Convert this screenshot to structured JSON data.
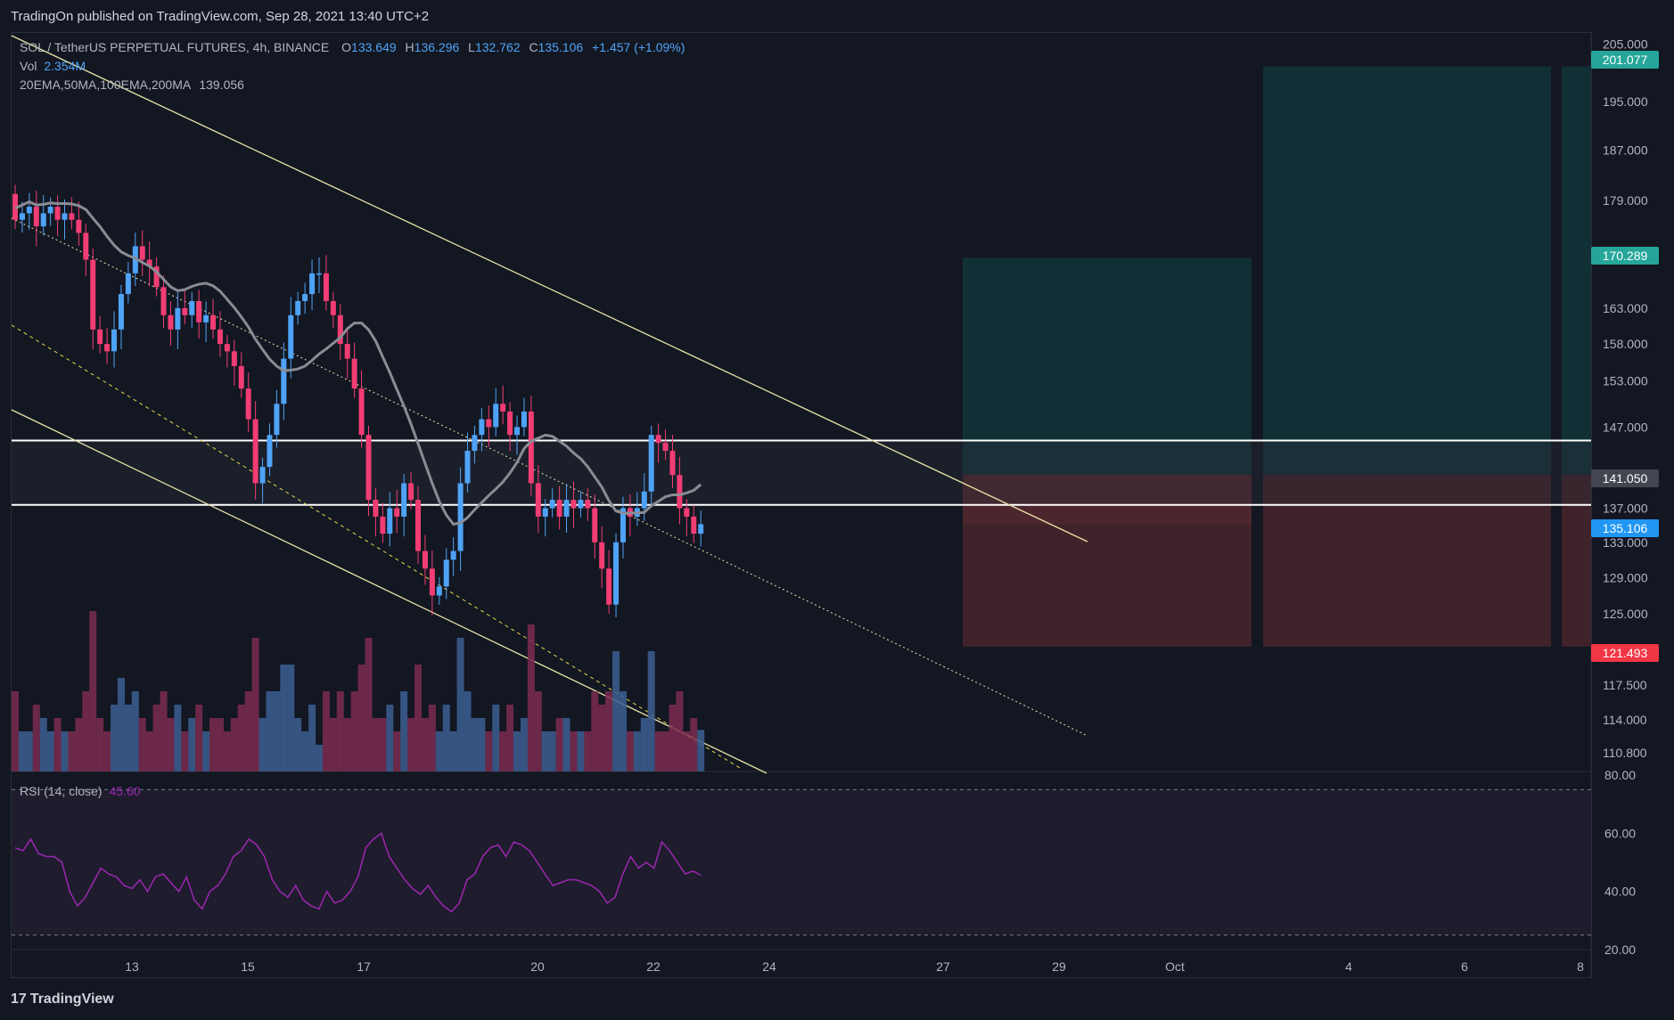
{
  "header": {
    "published_text": "TradingOn published on TradingView.com, Sep 28, 2021 13:40 UTC+2"
  },
  "legend": {
    "symbol_line": "SOL / TetherUS PERPETUAL FUTURES, 4h, BINANCE",
    "ohlc": {
      "O_label": "O",
      "O": "133.649",
      "H_label": "H",
      "H": "136.296",
      "L_label": "L",
      "L": "132.762",
      "C_label": "C",
      "C": "135.106",
      "change": "+1.457 (+1.09%)"
    },
    "vol_label": "Vol",
    "vol_value": "2.354M",
    "ma_label": "20EMA,50MA,100EMA,200MA",
    "ma_value": "139.056",
    "rsi_label": "RSI (14, close)",
    "rsi_value": "45.60"
  },
  "price_axis": {
    "ticks": [
      "205.000",
      "195.000",
      "187.000",
      "179.000",
      "163.000",
      "158.000",
      "153.000",
      "147.000",
      "137.000",
      "133.000",
      "129.000",
      "125.000",
      "117.500",
      "114.000",
      "110.800"
    ],
    "tags": [
      {
        "label": "201.077",
        "color": "#26a69a"
      },
      {
        "label": "170.289",
        "color": "#26a69a"
      },
      {
        "label": "141.050",
        "color": "#434651"
      },
      {
        "label": "135.106",
        "color": "#2196f3"
      },
      {
        "label": "121.493",
        "color": "#f23645"
      }
    ]
  },
  "rsi_axis": {
    "ticks": [
      "80.00",
      "60.00",
      "40.00",
      "20.00"
    ]
  },
  "time_axis": {
    "ticks": [
      "13",
      "15",
      "17",
      "20",
      "22",
      "24",
      "27",
      "29",
      "Oct",
      "4",
      "6",
      "8"
    ]
  },
  "colors": {
    "up": "#4fa3f7",
    "down": "#f23d74",
    "background": "#131722",
    "ma": "#8a8c94",
    "rsi": "#9c27b0",
    "trendline": "#e8e3a6",
    "target_zone": "#113036",
    "stop_zone": "#40222a"
  },
  "chart_data": [
    {
      "type": "candlestick",
      "title": "SOL / TetherUS PERPETUAL FUTURES, 4h, BINANCE",
      "y_scale": "log",
      "ylim": [
        109,
        207
      ],
      "x_ticks": [
        "13",
        "15",
        "17",
        "20",
        "22",
        "24",
        "27",
        "29",
        "Oct",
        "4",
        "6",
        "8"
      ],
      "candles_close_approx": [
        176,
        177,
        178,
        175,
        177,
        178,
        176,
        177,
        176,
        174,
        170,
        160,
        158,
        157,
        160,
        165,
        168,
        172,
        170,
        169,
        166,
        162,
        160,
        163,
        162,
        164,
        161,
        162,
        160,
        158,
        157,
        155,
        152,
        148,
        140,
        142,
        146,
        150,
        156,
        162,
        164,
        165,
        168,
        168,
        164,
        162,
        158,
        156,
        152,
        146,
        138,
        136,
        134,
        137,
        136,
        140,
        138,
        132,
        130,
        127,
        128,
        131,
        132,
        140,
        144,
        146,
        148,
        147,
        150,
        149,
        146,
        147,
        149,
        140,
        136,
        137,
        138,
        136,
        138,
        137,
        138,
        137,
        133,
        130,
        126,
        133,
        137,
        136,
        137,
        139,
        146,
        145,
        144,
        141,
        137,
        136,
        134,
        135.106
      ],
      "horizontal_levels": [
        145.3,
        137.4
      ],
      "long_position": {
        "entry": 141.05,
        "target": 170.289,
        "stop": 121.493
      },
      "long_position_2": {
        "entry": 141.05,
        "target": 201.077,
        "stop": 121.493
      }
    },
    {
      "type": "area",
      "title": "Vol",
      "last_value": "2.354M"
    },
    {
      "type": "line",
      "title": "RSI (14, close)",
      "ylim": [
        20,
        80
      ],
      "bands": [
        75,
        25
      ],
      "values": [
        55,
        54,
        58,
        53,
        52,
        52,
        50,
        40,
        35,
        38,
        43,
        48,
        46,
        45,
        42,
        41,
        44,
        40,
        45,
        46,
        43,
        40,
        45,
        37,
        34,
        40,
        42,
        46,
        52,
        54,
        58,
        56,
        52,
        44,
        40,
        38,
        42,
        37,
        35,
        34,
        40,
        36,
        37,
        40,
        45,
        55,
        58,
        60,
        52,
        48,
        44,
        41,
        39,
        42,
        38,
        35,
        33,
        36,
        44,
        46,
        52,
        55,
        56,
        52,
        57,
        56,
        54,
        50,
        46,
        42,
        43,
        44,
        44,
        43,
        42,
        40,
        36,
        38,
        46,
        52,
        48,
        50,
        48,
        57,
        54,
        50,
        46,
        47,
        45.6
      ]
    }
  ]
}
